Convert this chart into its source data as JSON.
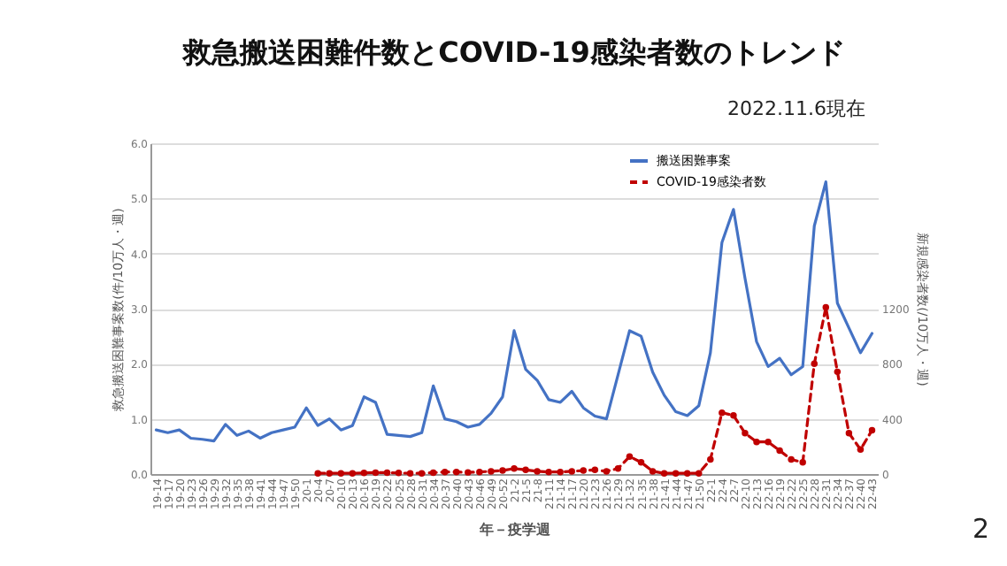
{
  "chart_data": {
    "type": "line",
    "title": "救急搬送困難件数とCOVID-19感染者数のトレンド",
    "xlabel": "年－疫学週",
    "ylabel": "救急搬送困難事案数(件/10万人・週)",
    "y2label": "新規感染者数(/10万人・週)",
    "annotations": [
      "2022.11.6現在",
      "2"
    ],
    "categories": [
      "19-14",
      "19-17",
      "19-20",
      "19-23",
      "19-26",
      "19-29",
      "19-32",
      "19-35",
      "19-38",
      "19-41",
      "19-44",
      "19-47",
      "19-50",
      "20-1",
      "20-4",
      "20-7",
      "20-10",
      "20-13",
      "20-16",
      "20-19",
      "20-22",
      "20-25",
      "20-28",
      "20-31",
      "20-34",
      "20-37",
      "20-40",
      "20-43",
      "20-46",
      "20-49",
      "20-52",
      "21-2",
      "21-5",
      "21-8",
      "21-11",
      "21-14",
      "21-17",
      "21-20",
      "21-23",
      "21-26",
      "21-29",
      "21-32",
      "21-35",
      "21-38",
      "21-41",
      "21-44",
      "21-47",
      "21-50",
      "22-1",
      "22-4",
      "22-7",
      "22-10",
      "22-13",
      "22-16",
      "22-19",
      "22-22",
      "22-25",
      "22-28",
      "22-31",
      "22-34",
      "22-37",
      "22-40",
      "22-43"
    ],
    "series": [
      {
        "name": "搬送困難事案",
        "color": "#4472c4",
        "line_style": "solid",
        "values": [
          0.8,
          0.75,
          0.8,
          0.65,
          0.63,
          0.6,
          0.9,
          0.7,
          0.78,
          0.65,
          0.75,
          0.8,
          0.85,
          1.2,
          0.88,
          1.0,
          0.8,
          0.88,
          1.4,
          1.3,
          0.72,
          0.7,
          0.68,
          0.75,
          1.6,
          1.0,
          0.95,
          0.85,
          0.9,
          1.1,
          1.4,
          2.6,
          1.9,
          1.7,
          1.35,
          1.3,
          1.5,
          1.2,
          1.05,
          1.0,
          1.8,
          2.6,
          2.5,
          1.85,
          1.43,
          1.13,
          1.06,
          1.24,
          2.2,
          4.2,
          4.8,
          3.55,
          2.4,
          1.95,
          2.1,
          1.8,
          1.95,
          4.5,
          5.3,
          3.1,
          2.65,
          2.2,
          2.55
        ]
      },
      {
        "name": "COVID-19感染者数",
        "color": "#c00000",
        "axis": "y2",
        "line_style": "dashed",
        "marker": "circle",
        "values": [
          null,
          null,
          null,
          null,
          null,
          null,
          null,
          null,
          null,
          null,
          null,
          null,
          null,
          null,
          5,
          5,
          5,
          5,
          8,
          10,
          10,
          8,
          5,
          5,
          10,
          15,
          15,
          12,
          15,
          20,
          25,
          40,
          30,
          20,
          15,
          15,
          20,
          25,
          30,
          20,
          40,
          127,
          85,
          20,
          5,
          5,
          5,
          5,
          106,
          445,
          425,
          297,
          233,
          233,
          170,
          106,
          85,
          800,
          1209,
          742,
          297,
          178,
          318
        ]
      }
    ],
    "ylim": [
      0,
      6
    ],
    "yticks": [
      {
        "value": 0,
        "label": "0.0"
      },
      {
        "value": 1,
        "label": "1.0"
      },
      {
        "value": 2,
        "label": "2.0"
      },
      {
        "value": 3,
        "label": "3.0"
      },
      {
        "value": 4,
        "label": "4.0"
      },
      {
        "value": 5,
        "label": "5.0"
      },
      {
        "value": 6,
        "label": "6.0"
      }
    ],
    "y2lim": [
      0,
      2400
    ],
    "y2ticks": [
      0,
      400,
      800,
      1200
    ],
    "grid": "y",
    "legend": "top right"
  }
}
